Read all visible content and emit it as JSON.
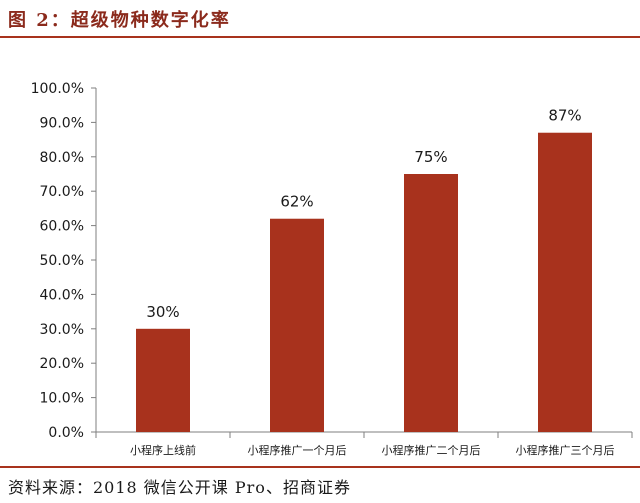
{
  "figure": {
    "title": "图 2：超级物种数字化率",
    "source": "资料来源：2018 微信公开课 Pro、招商证券"
  },
  "chart_data": {
    "type": "bar",
    "title": "",
    "xlabel": "",
    "ylabel": "",
    "categories": [
      "小程序上线前",
      "小程序推广一个月后",
      "小程序推广二个月后",
      "小程序推广三个月后"
    ],
    "values": [
      30,
      62,
      75,
      87
    ],
    "data_labels": [
      "30%",
      "62%",
      "75%",
      "87%"
    ],
    "ylim": [
      0,
      100
    ],
    "yticks": [
      0,
      10,
      20,
      30,
      40,
      50,
      60,
      70,
      80,
      90,
      100
    ],
    "ytick_labels": [
      "0.0%",
      "10.0%",
      "20.0%",
      "30.0%",
      "40.0%",
      "50.0%",
      "60.0%",
      "70.0%",
      "80.0%",
      "90.0%",
      "100.0%"
    ],
    "grid": false,
    "legend": "none",
    "bar_color": "#a8321d"
  }
}
